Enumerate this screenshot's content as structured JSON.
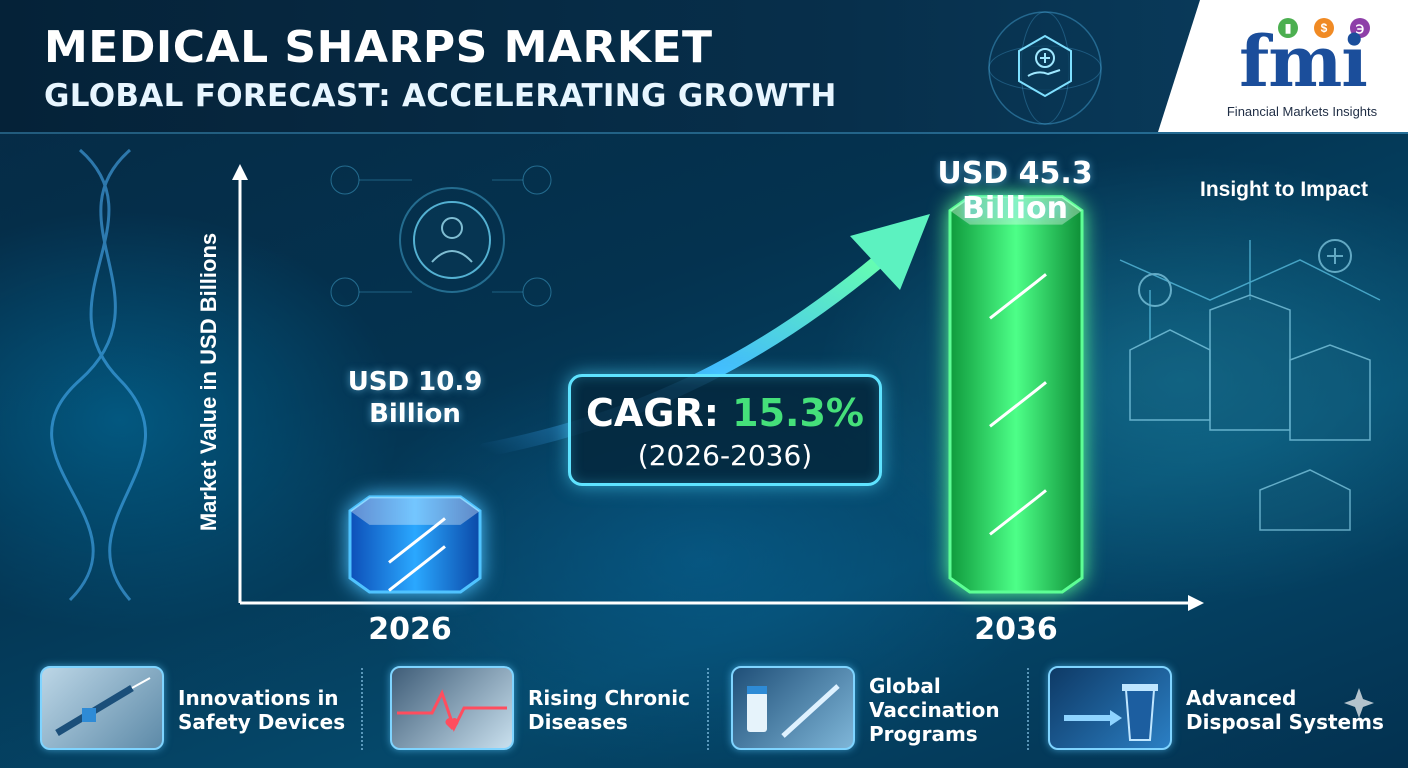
{
  "header": {
    "title": "MEDICAL SHARPS MARKET",
    "subtitle": "GLOBAL FORECAST: ACCELERATING GROWTH"
  },
  "brand": {
    "logo_text": "fmi",
    "name": "Financial Markets Insights",
    "primary_color": "#1b4e9b"
  },
  "insight_text": "Insight to Impact",
  "cagr": {
    "label": "CAGR:",
    "value": "15.3%",
    "period": "(2026-2036)",
    "value_color": "#45e07a",
    "border_color": "#5fe3ff"
  },
  "chart_data": {
    "type": "bar",
    "title": "",
    "xlabel": "",
    "ylabel": "Market Value in USD Billions",
    "categories": [
      "2026",
      "2036"
    ],
    "values": [
      10.9,
      45.3
    ],
    "value_labels": [
      "USD 10.9\nBillion",
      "USD 45.3\nBillion"
    ],
    "ylim": [
      0,
      55
    ],
    "grid": false,
    "bar_colors": [
      "#1e8dff",
      "#2ee66a"
    ],
    "trend_arrow": true
  },
  "drivers": [
    {
      "label": "Innovations in\nSafety Devices",
      "icon": "syringe-icon"
    },
    {
      "label": "Rising Chronic\nDiseases",
      "icon": "heartbeat-icon"
    },
    {
      "label": "Global\nVaccination\nPrograms",
      "icon": "vaccine-vial-icon"
    },
    {
      "label": "Advanced\nDisposal Systems",
      "icon": "sharps-container-icon"
    }
  ]
}
